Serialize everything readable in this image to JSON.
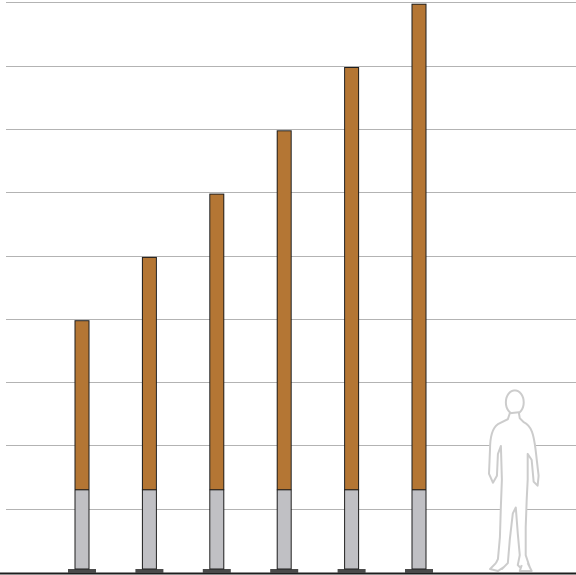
{
  "chart_data": {
    "type": "bar",
    "stacked": true,
    "title": "",
    "xlabel": "",
    "ylabel": "",
    "grid": true,
    "gridline_count": 9,
    "categories": [
      "",
      "",
      "",
      "",
      "",
      ""
    ],
    "series": [
      {
        "values": [
          1.3,
          1.3,
          1.3,
          1.3,
          1.3,
          1.3
        ],
        "color": "#c0c0c4"
      },
      {
        "values": [
          2.67,
          3.67,
          4.67,
          5.67,
          6.67,
          7.67
        ],
        "color": "#b47634"
      }
    ],
    "ylim": [
      0,
      9
    ],
    "scale_figure": {
      "icon": "person-silhouette-icon",
      "height": 2.9,
      "color": "#cccccc"
    },
    "colors": {
      "grid": "#b3b3b3",
      "outline": "#1e1e1e",
      "base": "#4a4a4a",
      "background": "#ffffff"
    }
  }
}
